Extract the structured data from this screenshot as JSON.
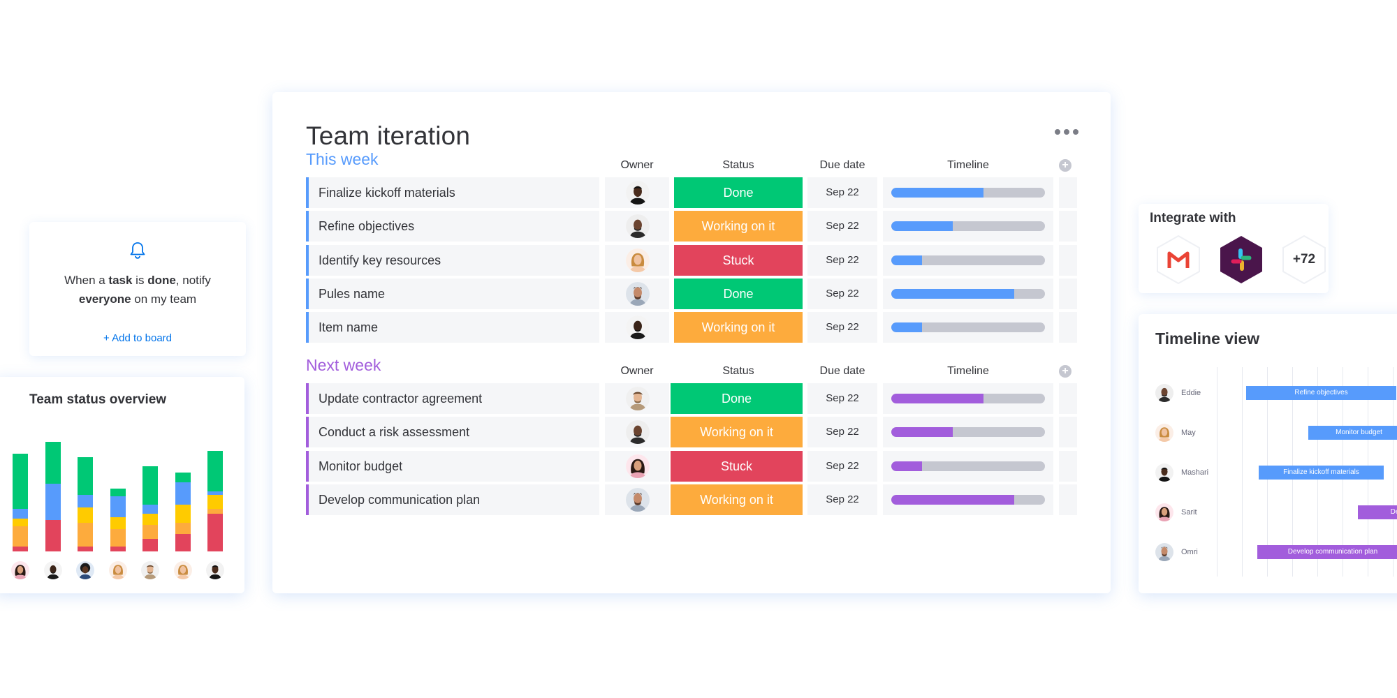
{
  "board": {
    "title": "Team iteration",
    "columns": {
      "owner": "Owner",
      "status": "Status",
      "due": "Due date",
      "timeline": "Timeline"
    },
    "groups": [
      {
        "title": "This week",
        "color": "#579bfc",
        "rows": [
          {
            "name": "Finalize kickoff materials",
            "status": "Done",
            "status_color": "#00c875",
            "due": "Sep 22",
            "progress": 0.6,
            "avatar": "a1"
          },
          {
            "name": "Refine objectives",
            "status": "Working on it",
            "status_color": "#fdab3d",
            "due": "Sep 22",
            "progress": 0.4,
            "avatar": "a2"
          },
          {
            "name": "Identify key resources",
            "status": "Stuck",
            "status_color": "#e2445c",
            "due": "Sep 22",
            "progress": 0.2,
            "avatar": "a3"
          },
          {
            "name": "Pules name",
            "status": "Done",
            "status_color": "#00c875",
            "due": "Sep 22",
            "progress": 0.8,
            "avatar": "a4"
          },
          {
            "name": "Item name",
            "status": "Working on it",
            "status_color": "#fdab3d",
            "due": "Sep 22",
            "progress": 0.2,
            "avatar": "a5"
          }
        ]
      },
      {
        "title": "Next week",
        "color": "#a25ddc",
        "rows": [
          {
            "name": "Update contractor agreement",
            "status": "Done",
            "status_color": "#00c875",
            "due": "Sep 22",
            "progress": 0.6,
            "avatar": "a6"
          },
          {
            "name": "Conduct a risk assessment",
            "status": "Working on it",
            "status_color": "#fdab3d",
            "due": "Sep 22",
            "progress": 0.4,
            "avatar": "a2"
          },
          {
            "name": "Monitor budget",
            "status": "Stuck",
            "status_color": "#e2445c",
            "due": "Sep 22",
            "progress": 0.2,
            "avatar": "a7"
          },
          {
            "name": "Develop communication plan",
            "status": "Working on it",
            "status_color": "#fdab3d",
            "due": "Sep 22",
            "progress": 0.8,
            "avatar": "a4"
          }
        ]
      }
    ]
  },
  "automation": {
    "p1": "When a ",
    "task": "task",
    "p2": " is ",
    "done": "done",
    "p3": ", notify",
    "everyone": "everyone",
    "p4": " on my team",
    "add_label": "+ Add to board"
  },
  "overview": {
    "title": "Team status overview",
    "bars": [
      [
        {
          "c": "#e2445c",
          "v": 8
        },
        {
          "c": "#fdab3d",
          "v": 32
        },
        {
          "c": "#ffcb00",
          "v": 12
        },
        {
          "c": "#579bfc",
          "v": 16
        },
        {
          "c": "#00c875",
          "v": 88
        }
      ],
      [
        {
          "c": "#e2445c",
          "v": 50
        },
        {
          "c": "#579bfc",
          "v": 58
        },
        {
          "c": "#00c875",
          "v": 66
        }
      ],
      [
        {
          "c": "#e2445c",
          "v": 8
        },
        {
          "c": "#fdab3d",
          "v": 38
        },
        {
          "c": "#ffcb00",
          "v": 24
        },
        {
          "c": "#579bfc",
          "v": 20
        },
        {
          "c": "#00c875",
          "v": 60
        }
      ],
      [
        {
          "c": "#e2445c",
          "v": 8
        },
        {
          "c": "#fdab3d",
          "v": 28
        },
        {
          "c": "#ffcb00",
          "v": 18
        },
        {
          "c": "#579bfc",
          "v": 34
        },
        {
          "c": "#00c875",
          "v": 12
        }
      ],
      [
        {
          "c": "#e2445c",
          "v": 20
        },
        {
          "c": "#fdab3d",
          "v": 22
        },
        {
          "c": "#ffcb00",
          "v": 18
        },
        {
          "c": "#579bfc",
          "v": 14
        },
        {
          "c": "#00c875",
          "v": 62
        }
      ],
      [
        {
          "c": "#e2445c",
          "v": 28
        },
        {
          "c": "#fdab3d",
          "v": 18
        },
        {
          "c": "#ffcb00",
          "v": 28
        },
        {
          "c": "#579bfc",
          "v": 36
        },
        {
          "c": "#00c875",
          "v": 16
        }
      ],
      [
        {
          "c": "#e2445c",
          "v": 60
        },
        {
          "c": "#fdab3d",
          "v": 8
        },
        {
          "c": "#ffcb00",
          "v": 22
        },
        {
          "c": "#579bfc",
          "v": 6
        },
        {
          "c": "#00c875",
          "v": 64
        }
      ]
    ],
    "avatars": [
      "a7",
      "a5",
      "a8",
      "a3",
      "a6",
      "a3",
      "a1"
    ]
  },
  "integrate": {
    "title": "Integrate with",
    "items": [
      {
        "icon": "gmail-icon"
      },
      {
        "icon": "slack-icon"
      },
      {
        "label": "+72"
      }
    ]
  },
  "timeline": {
    "title": "Timeline view",
    "rows": [
      {
        "name": "Eddie",
        "avatar": "a2",
        "task": "Refine objectives",
        "color": "#579bfc"
      },
      {
        "name": "May",
        "avatar": "a3",
        "task": "Monitor budget",
        "color": "#579bfc"
      },
      {
        "name": "Mashari",
        "avatar": "a1",
        "task": "Finalize kickoff materials",
        "color": "#579bfc"
      },
      {
        "name": "Sarit",
        "avatar": "a7",
        "task": "Develop",
        "color": "#a25ddc"
      },
      {
        "name": "Omri",
        "avatar": "a4",
        "task": "Develop communication plan",
        "color": "#a25ddc"
      }
    ]
  }
}
